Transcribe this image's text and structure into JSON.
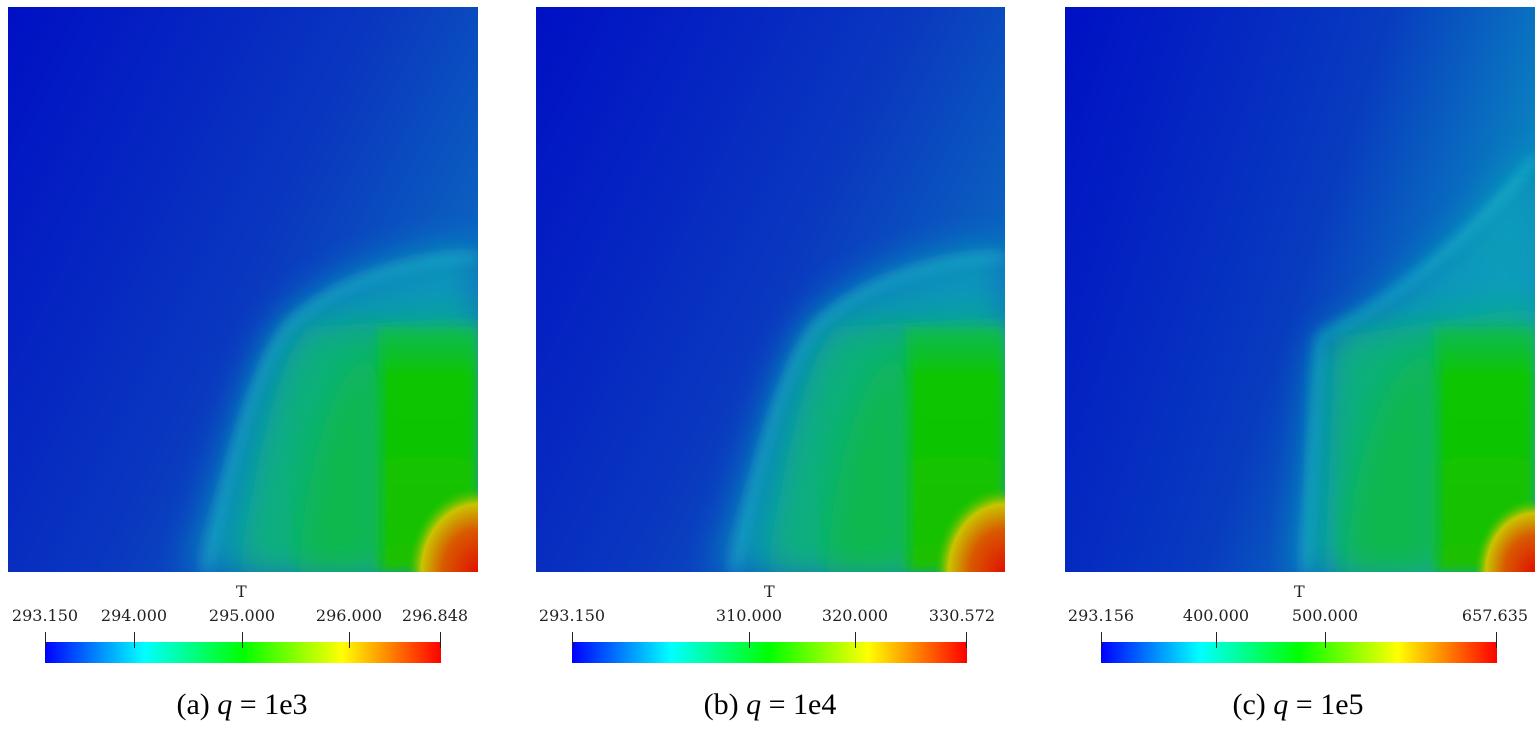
{
  "panels": [
    {
      "caption_prefix": "(a) ",
      "caption_var": "q",
      "caption_suffix": " = 1e3",
      "colorbar": {
        "title": "T",
        "min": 293.15,
        "max": 296.848,
        "ticks": [
          "293.150",
          "294.000",
          "295.000",
          "296.000",
          "296.848"
        ],
        "tick_values": [
          293.15,
          294.0,
          295.0,
          296.0,
          296.848
        ]
      }
    },
    {
      "caption_prefix": "(b) ",
      "caption_var": "q",
      "caption_suffix": " = 1e4",
      "colorbar": {
        "title": "T",
        "min": 293.15,
        "max": 330.572,
        "ticks": [
          "293.150",
          "310.000",
          "320.000",
          "330.572"
        ],
        "tick_values": [
          293.15,
          310.0,
          320.0,
          330.572
        ]
      }
    },
    {
      "caption_prefix": "(c) ",
      "caption_var": "q",
      "caption_suffix": " = 1e5",
      "colorbar": {
        "title": "T",
        "min": 293.156,
        "max": 657.635,
        "ticks": [
          "293.156",
          "400.000",
          "500.000",
          "657.635"
        ],
        "tick_values": [
          293.156,
          400.0,
          500.0,
          657.635
        ]
      }
    }
  ],
  "colormap": [
    "#0000ff",
    "#00ffff",
    "#00ff00",
    "#ffff00",
    "#ff0000"
  ]
}
